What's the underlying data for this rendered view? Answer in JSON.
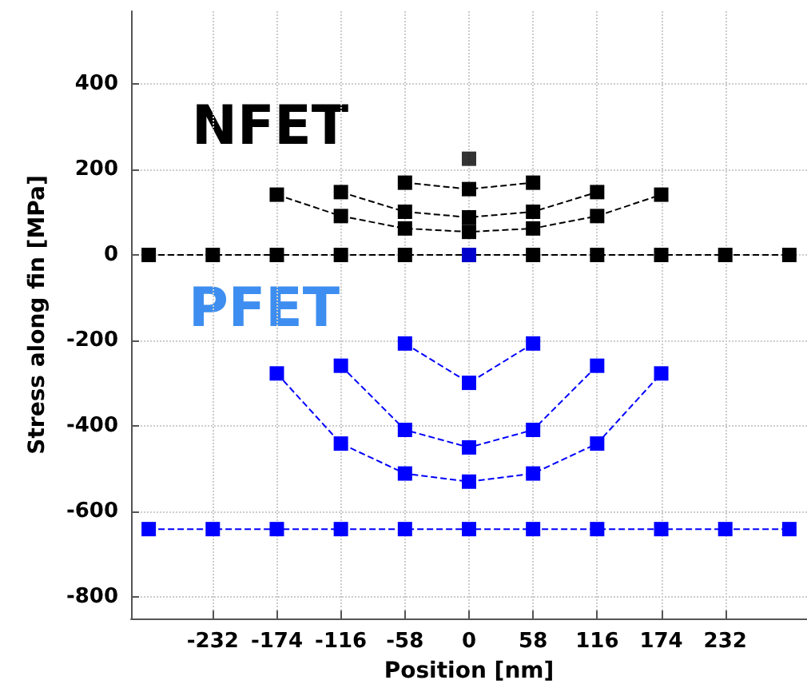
{
  "chart_data": {
    "type": "line",
    "xlabel": "Position [nm]",
    "ylabel": "Stress along fin [MPa]",
    "annotations": [
      "NFET",
      "PFET"
    ],
    "xlim": [
      -306,
      306
    ],
    "xticks": [
      -232,
      -174,
      -116,
      -58,
      0,
      58,
      116,
      174,
      232
    ],
    "ylim": [
      -850,
      570
    ],
    "yticks": [
      -800,
      -600,
      -400,
      -200,
      0,
      200,
      400
    ],
    "grid": true,
    "marker": "square",
    "line_style": "dashed",
    "series": [
      {
        "color": "#000000",
        "x": [
          -290,
          -232,
          -174,
          -116,
          -58,
          0,
          58,
          116,
          174,
          232,
          290
        ],
        "values": [
          0,
          0,
          0,
          0,
          0,
          0,
          0,
          0,
          0,
          0,
          0
        ]
      },
      {
        "color": "#000000",
        "x": [
          -174,
          -116,
          -58,
          0,
          58,
          116,
          174
        ],
        "values": [
          141,
          91,
          62,
          54,
          62,
          91,
          141
        ]
      },
      {
        "color": "#000000",
        "x": [
          -116,
          -58,
          0,
          58,
          116
        ],
        "values": [
          147,
          101,
          88,
          101,
          147
        ]
      },
      {
        "color": "#000000",
        "x": [
          -58,
          0,
          58
        ],
        "values": [
          169,
          154,
          169
        ]
      },
      {
        "type": "scatter",
        "color": "#000000",
        "x": [
          0
        ],
        "values": [
          225
        ]
      },
      {
        "color": "#0000ff",
        "x": [
          -290,
          -232,
          -174,
          -116,
          -58,
          0,
          58,
          116,
          174,
          232,
          290
        ],
        "values": [
          -641,
          -641,
          -641,
          -641,
          -641,
          -641,
          -641,
          -641,
          -641,
          -641,
          -641
        ]
      },
      {
        "color": "#0000ff",
        "x": [
          -174,
          -116,
          -58,
          0,
          58,
          116,
          174
        ],
        "values": [
          -277,
          -441,
          -511,
          -530,
          -511,
          -441,
          -277
        ]
      },
      {
        "color": "#0000ff",
        "x": [
          -116,
          -58,
          0,
          58,
          116
        ],
        "values": [
          -259,
          -409,
          -450,
          -409,
          -259
        ]
      },
      {
        "color": "#0000ff",
        "x": [
          -58,
          0,
          58
        ],
        "values": [
          -207,
          -299,
          -207
        ]
      },
      {
        "type": "scatter",
        "color": "#0000ff",
        "x": [
          0
        ],
        "values": [
          0
        ]
      }
    ]
  }
}
